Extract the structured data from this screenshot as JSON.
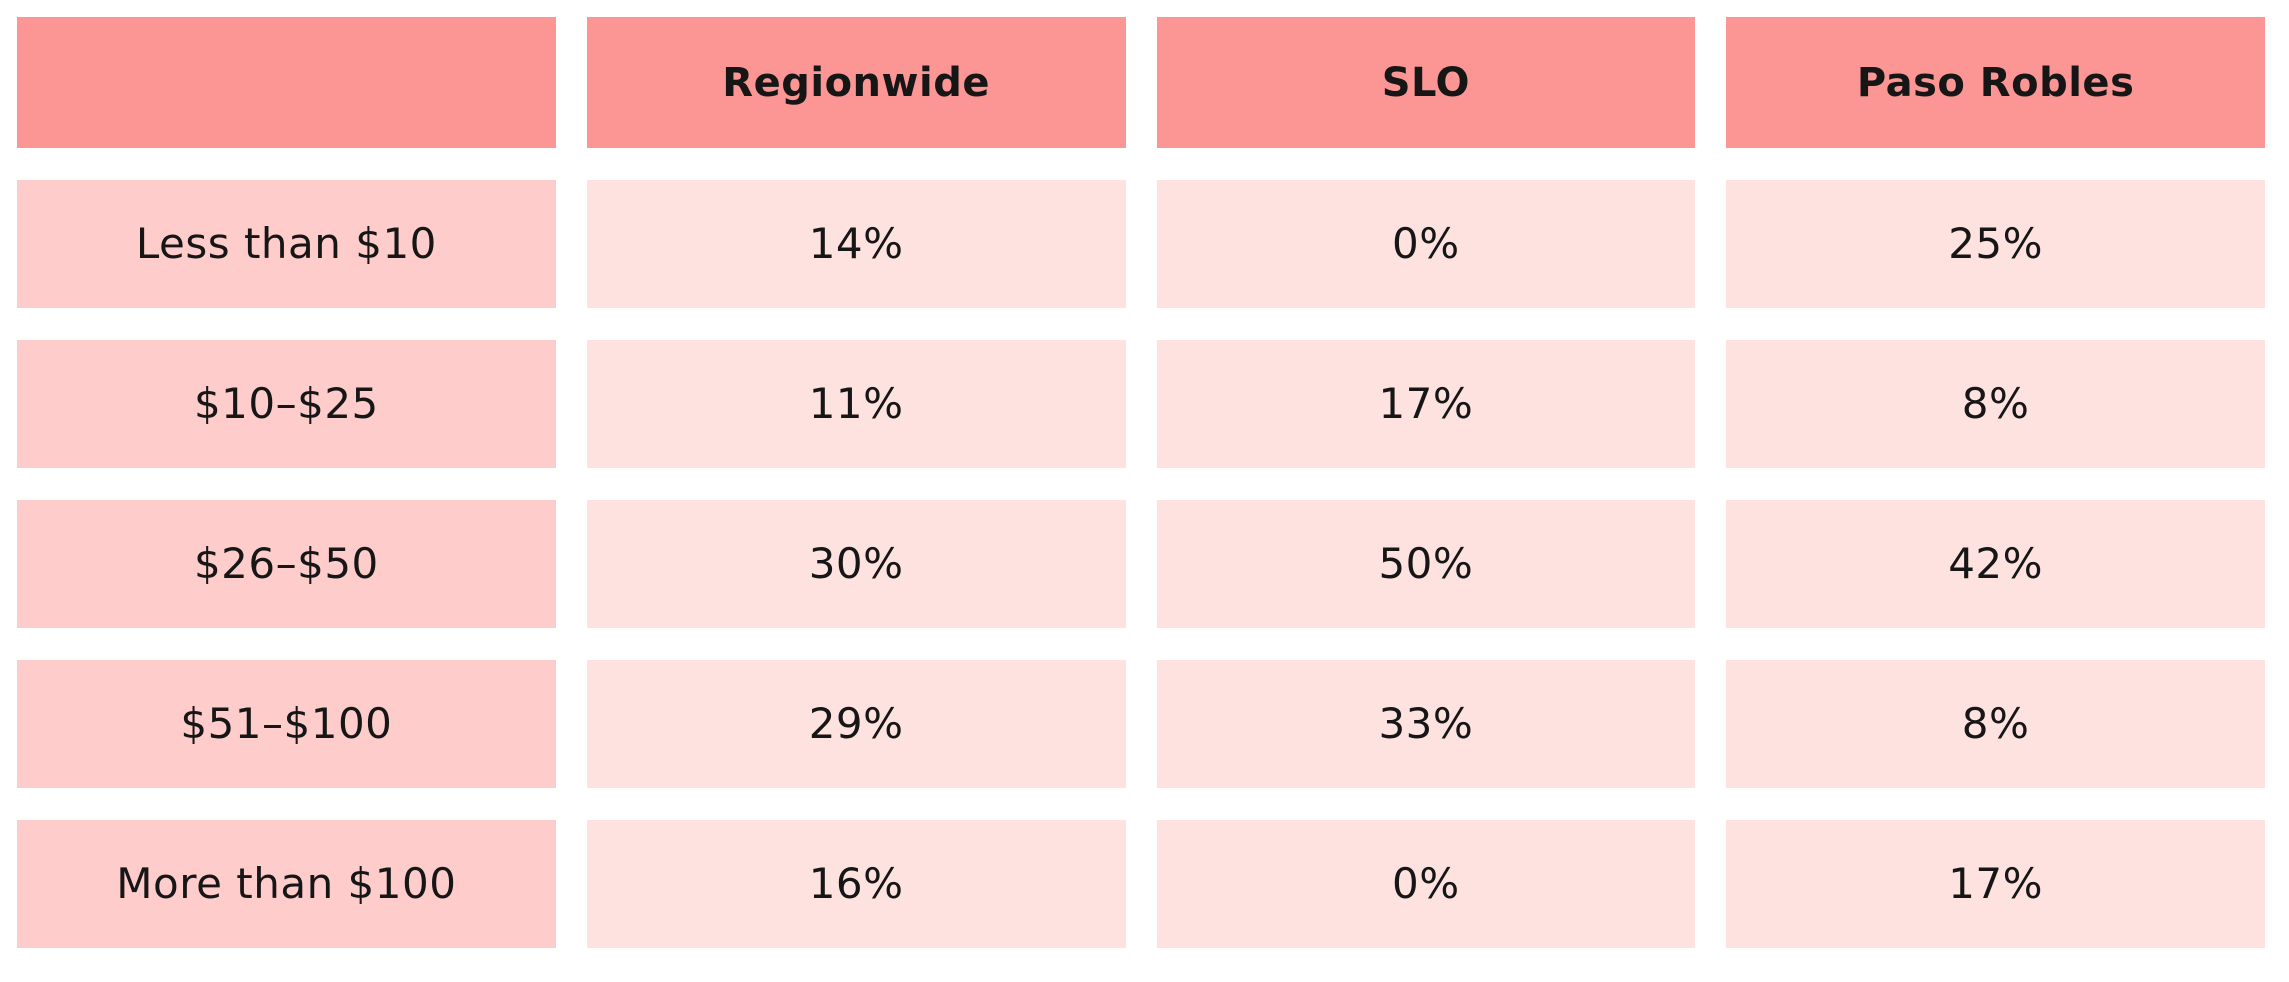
{
  "colors": {
    "header_bg": "#fb9694",
    "label_bg": "#fecdcb",
    "value_bg": "#fee2e0",
    "text": "#161616",
    "page_bg": "#ffffff"
  },
  "table": {
    "header": [
      "",
      "Regionwide",
      "SLO",
      "Paso Robles"
    ],
    "rows": [
      {
        "label": "Less than $10",
        "values": [
          "14%",
          "0%",
          "25%"
        ]
      },
      {
        "label": "$10–$25",
        "values": [
          "11%",
          "17%",
          "8%"
        ]
      },
      {
        "label": "$26–$50",
        "values": [
          "30%",
          "50%",
          "42%"
        ]
      },
      {
        "label": "$51–$100",
        "values": [
          "29%",
          "33%",
          "8%"
        ]
      },
      {
        "label": "More than $100",
        "values": [
          "16%",
          "0%",
          "17%"
        ]
      }
    ]
  },
  "chart_data": {
    "type": "table",
    "title": "",
    "columns": [
      "",
      "Regionwide",
      "SLO",
      "Paso Robles"
    ],
    "row_categories": [
      "Less than $10",
      "$10–$25",
      "$26–$50",
      "$51–$100",
      "More than $100"
    ],
    "series": [
      {
        "name": "Regionwide",
        "values": [
          14,
          11,
          30,
          29,
          16
        ]
      },
      {
        "name": "SLO",
        "values": [
          0,
          17,
          50,
          33,
          0
        ]
      },
      {
        "name": "Paso Robles",
        "values": [
          25,
          8,
          42,
          8,
          17
        ]
      }
    ],
    "value_unit": "%",
    "layout": "matrix of percentage cells, header row tinted darker pink, label column medium pink, value cells pale pink, white gutters between all cells"
  }
}
